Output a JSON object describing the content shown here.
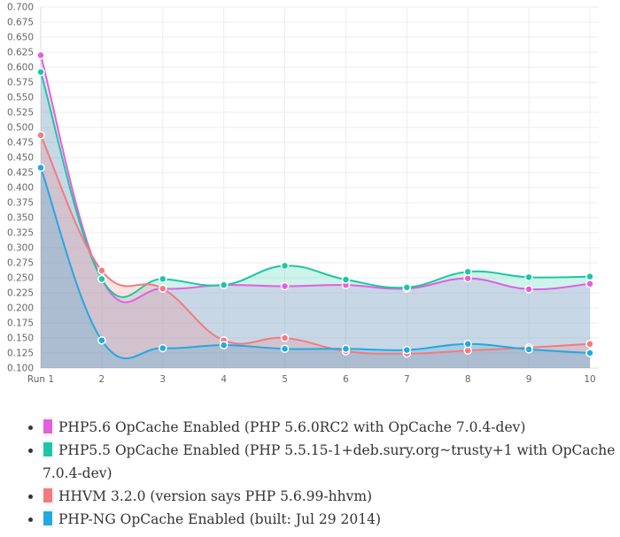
{
  "chart_data": {
    "type": "line",
    "x": [
      "Run 1",
      "2",
      "3",
      "4",
      "5",
      "6",
      "7",
      "8",
      "9",
      "10"
    ],
    "ylim": [
      0.1,
      0.7
    ],
    "y_ticks": [
      "0.100",
      "0.125",
      "0.150",
      "0.175",
      "0.200",
      "0.225",
      "0.250",
      "0.275",
      "0.300",
      "0.325",
      "0.350",
      "0.375",
      "0.400",
      "0.425",
      "0.450",
      "0.475",
      "0.500",
      "0.525",
      "0.550",
      "0.575",
      "0.600",
      "0.625",
      "0.650",
      "0.675",
      "0.700"
    ],
    "grid": true,
    "series": [
      {
        "name": "PHP5.6 OpCache Enabled (PHP 5.6.0RC2 with OpCache 7.0.4-dev)",
        "color": "#e35fe0",
        "values": [
          0.62,
          0.248,
          0.232,
          0.238,
          0.236,
          0.238,
          0.232,
          0.249,
          0.231,
          0.24
        ]
      },
      {
        "name": "PHP5.5 OpCache Enabled (PHP 5.5.15-1+deb.sury.org~trusty+1 with OpCache 7.0.4-dev)",
        "color": "#1cc7a3",
        "values": [
          0.592,
          0.248,
          0.248,
          0.238,
          0.27,
          0.247,
          0.234,
          0.26,
          0.251,
          0.252
        ]
      },
      {
        "name": "HHVM 3.2.0 (version says PHP 5.6.99-hhvm)",
        "color": "#f47a7e",
        "values": [
          0.487,
          0.262,
          0.232,
          0.146,
          0.15,
          0.128,
          0.124,
          0.129,
          0.134,
          0.14
        ]
      },
      {
        "name": "PHP-NG OpCache Enabled (built: Jul 29 2014)",
        "color": "#23a8e0",
        "values": [
          0.433,
          0.146,
          0.133,
          0.138,
          0.132,
          0.132,
          0.13,
          0.14,
          0.131,
          0.125
        ]
      }
    ]
  }
}
